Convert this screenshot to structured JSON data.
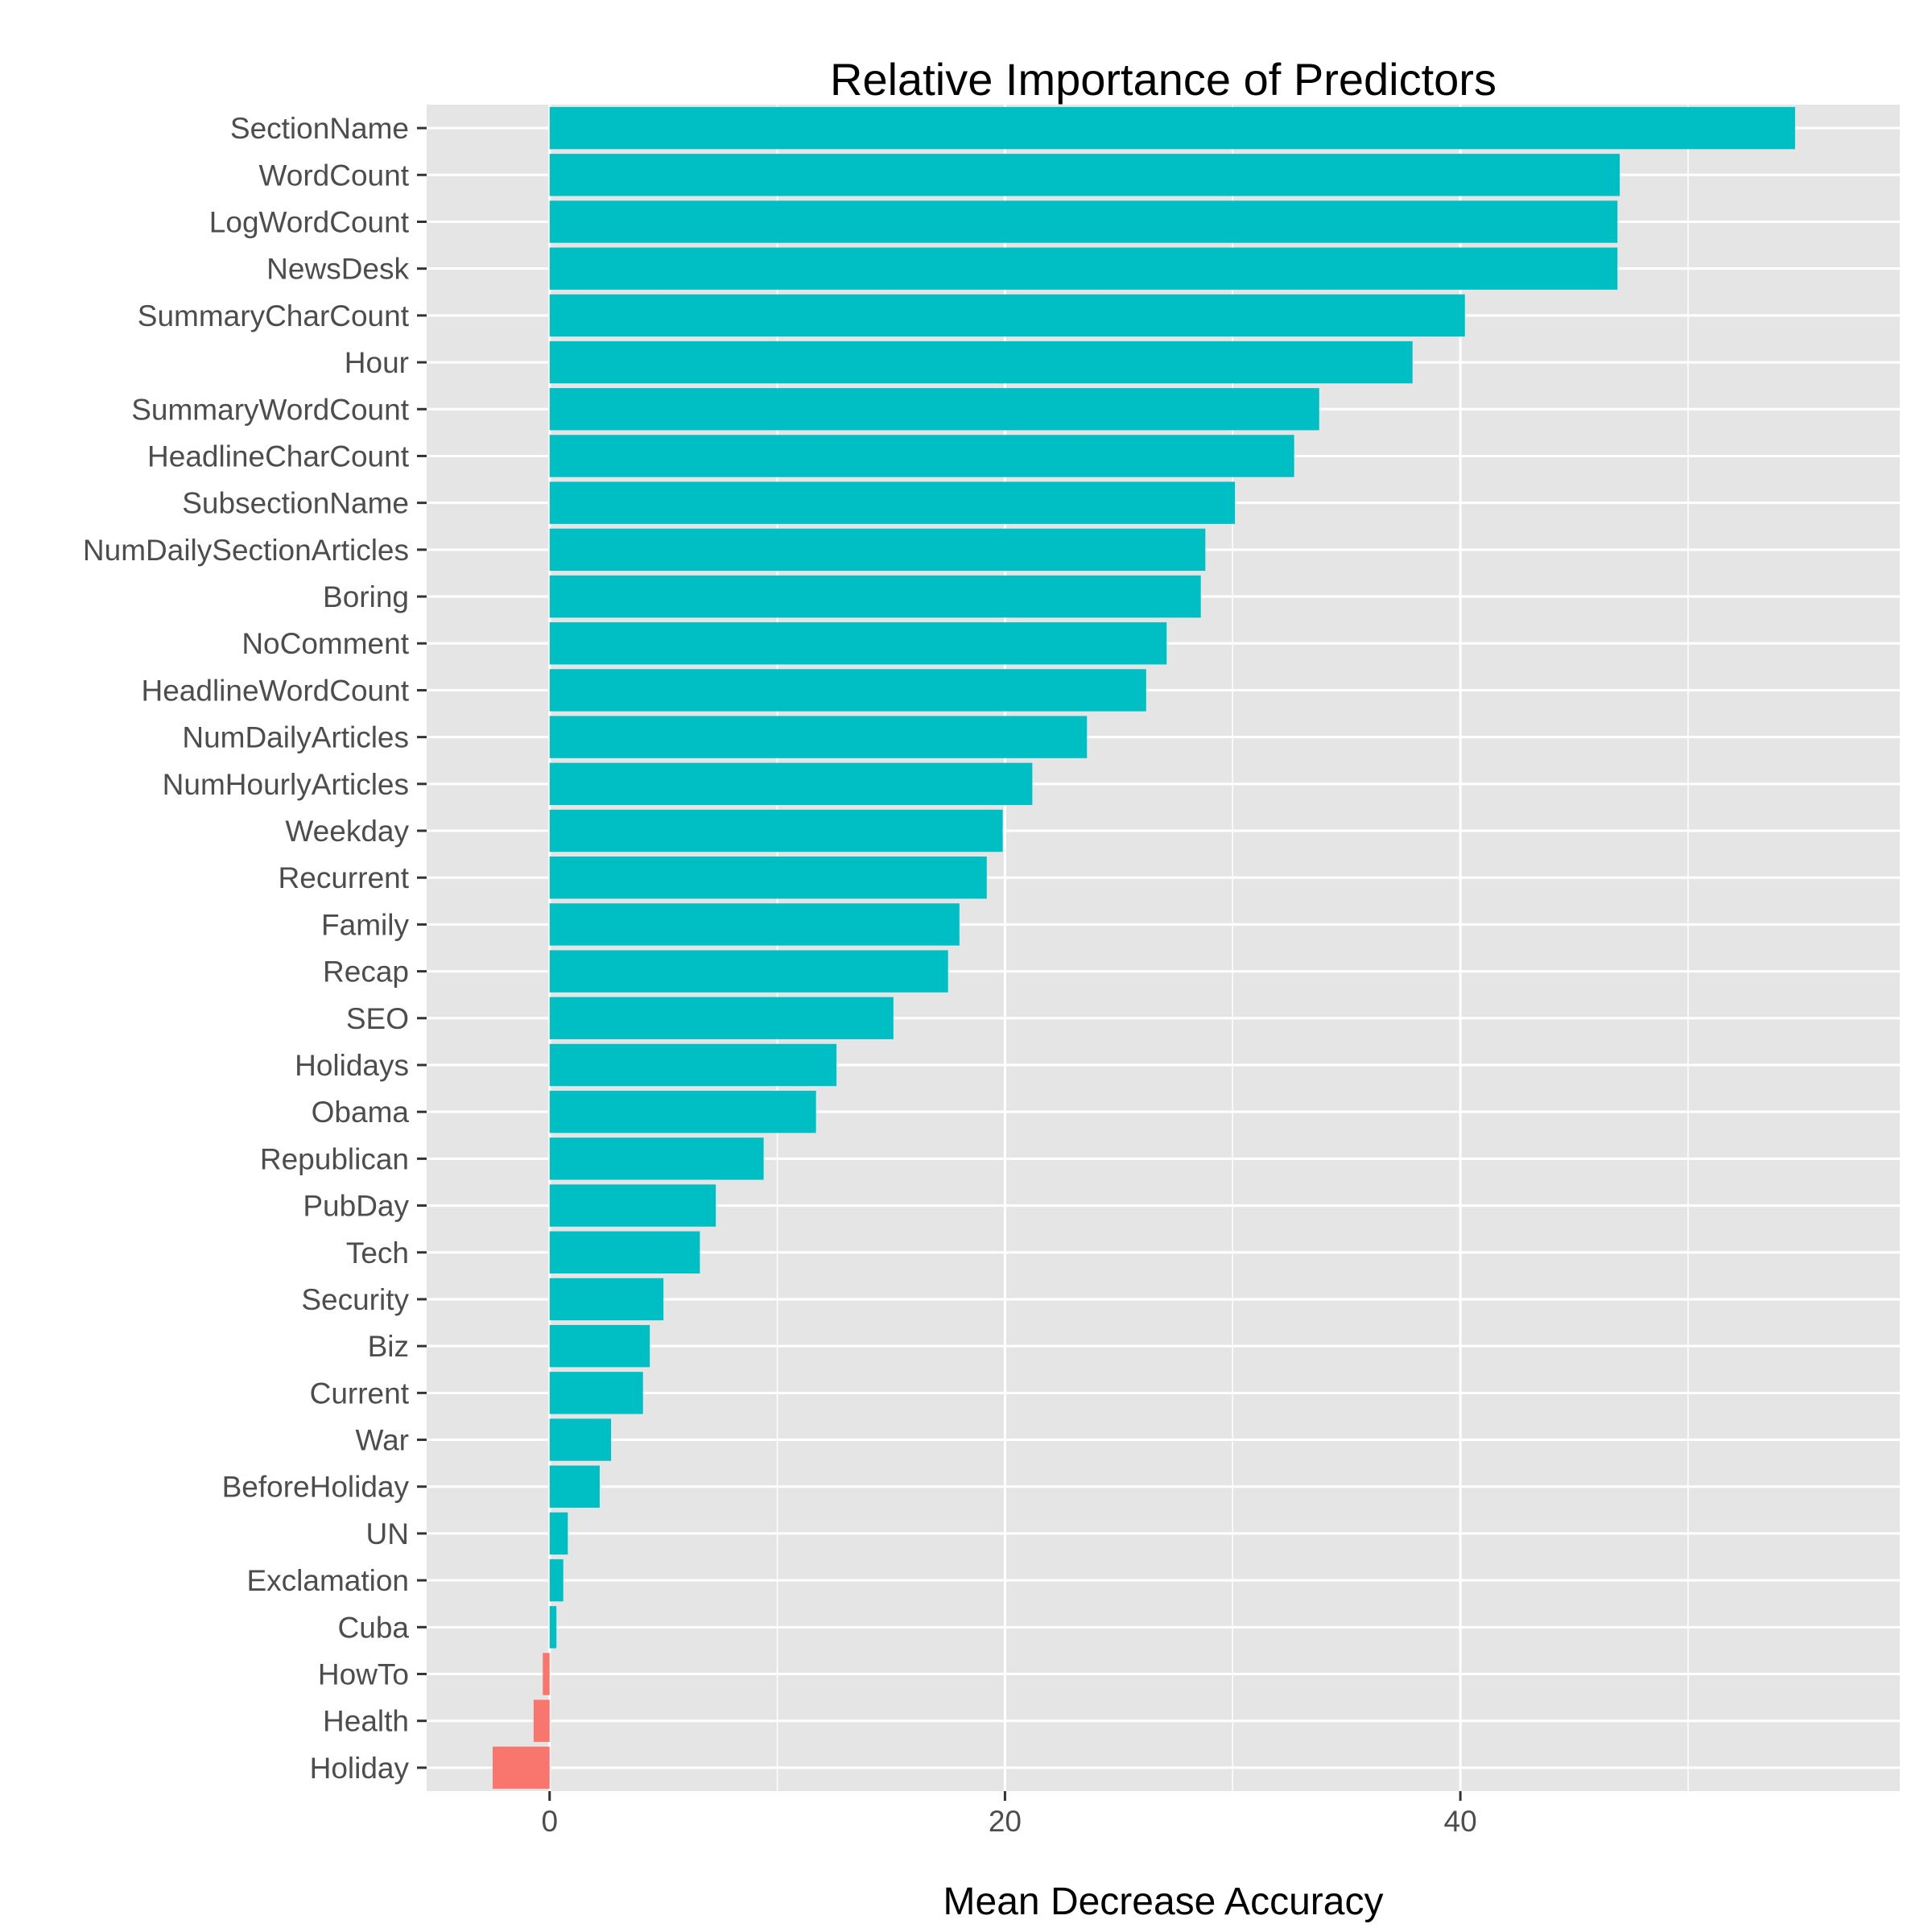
{
  "chart_data": {
    "type": "bar",
    "orientation": "horizontal",
    "title": "Relative Importance of Predictors",
    "xlabel": "Mean Decrease Accuracy",
    "ylabel": "",
    "xlim": [
      -5.4,
      59.3
    ],
    "xticks": [
      0,
      20,
      40
    ],
    "grid": true,
    "legend": "none",
    "colors": {
      "positive": "#00BFC4",
      "negative": "#F8766D",
      "panel": "#E5E5E5",
      "grid": "#FFFFFF"
    },
    "categories": [
      "SectionName",
      "WordCount",
      "LogWordCount",
      "NewsDesk",
      "SummaryCharCount",
      "Hour",
      "SummaryWordCount",
      "HeadlineCharCount",
      "SubsectionName",
      "NumDailySectionArticles",
      "Boring",
      "NoComment",
      "HeadlineWordCount",
      "NumDailyArticles",
      "NumHourlyArticles",
      "Weekday",
      "Recurrent",
      "Family",
      "Recap",
      "SEO",
      "Holidays",
      "Obama",
      "Republican",
      "PubDay",
      "Tech",
      "Security",
      "Biz",
      "Current",
      "War",
      "BeforeHoliday",
      "UN",
      "Exclamation",
      "Cuba",
      "HowTo",
      "Health",
      "Holiday"
    ],
    "values": [
      54.7,
      47.0,
      46.9,
      46.9,
      40.2,
      37.9,
      33.8,
      32.7,
      30.1,
      28.8,
      28.6,
      27.1,
      26.2,
      23.6,
      21.2,
      19.9,
      19.2,
      18.0,
      17.5,
      15.1,
      12.6,
      11.7,
      9.4,
      7.3,
      6.6,
      5.0,
      4.4,
      4.1,
      2.7,
      2.2,
      0.8,
      0.6,
      0.3,
      -0.3,
      -0.7,
      -2.5
    ]
  }
}
